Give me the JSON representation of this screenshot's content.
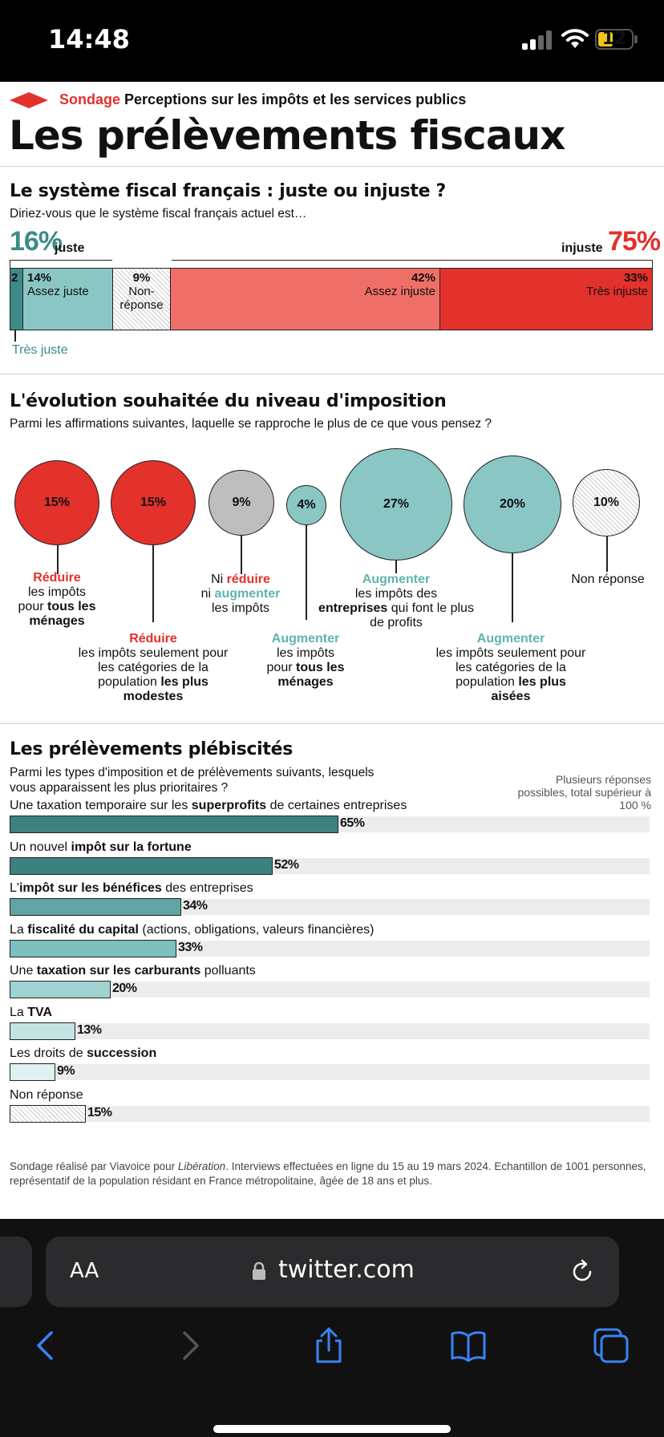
{
  "status_bar": {
    "time": "14:48",
    "battery": "12"
  },
  "article": {
    "kicker": {
      "tag": "Sondage",
      "text": "Perceptions sur les impôts et les services publics"
    },
    "title": "Les prélèvements fiscaux",
    "section1": {
      "title": "Le système fiscal français : juste ou injuste ?",
      "subtitle": "Diriez-vous que le système fiscal français actuel est…",
      "juste_pct": "16%",
      "juste_label": "juste",
      "injuste_pct": "75%",
      "injuste_label": "injuste",
      "tres_juste_label": "Très juste",
      "segments": [
        {
          "pct": "2",
          "label": "",
          "value": 2,
          "color": "#3d8a88"
        },
        {
          "pct": "14%",
          "label": "Assez juste",
          "value": 14,
          "color": "#89c6c4"
        },
        {
          "pct": "9%",
          "label": "Non-réponse",
          "value": 9,
          "color": "hatch"
        },
        {
          "pct": "42%",
          "label": "Assez injuste",
          "value": 42,
          "color": "#ef6f68"
        },
        {
          "pct": "33%",
          "label": "Très injuste",
          "value": 33,
          "color": "#e3312c"
        }
      ]
    },
    "section2": {
      "title": "L'évolution souhaitée du niveau d'imposition",
      "subtitle": "Parmi les affirmations suivantes, laquelle se rapproche le plus de ce que vous pensez ?",
      "bubbles": [
        {
          "pct": "15%",
          "value": 15,
          "color": "#e3312c",
          "l1": "Réduire",
          "l2": "les impôts",
          "l3": "pour",
          "l3b": "tous les ménages"
        },
        {
          "pct": "15%",
          "value": 15,
          "color": "#e3312c",
          "l1": "Réduire",
          "l2": "les impôts seulement pour les catégories de la population",
          "l3b": "les plus modestes"
        },
        {
          "pct": "9%",
          "value": 9,
          "color": "#bdbdbd",
          "a": "Ni",
          "b": "réduire",
          "c": "ni",
          "d": "augmenter",
          "e": "les impôts"
        },
        {
          "pct": "4%",
          "value": 4,
          "color": "#89c6c4",
          "l1": "Augmenter",
          "l2": "les impôts",
          "l3": "pour",
          "l3b": "tous les ménages"
        },
        {
          "pct": "27%",
          "value": 27,
          "color": "#89c6c4",
          "l1": "Augmenter",
          "l2": "les impôts des",
          "l3b": "entreprises",
          "l4": "qui font le plus de profits"
        },
        {
          "pct": "20%",
          "value": 20,
          "color": "#89c6c4",
          "l1": "Augmenter",
          "l2": "les impôts seulement pour les catégories de la population",
          "l3b": "les plus aisées"
        },
        {
          "pct": "10%",
          "value": 10,
          "color": "hatch",
          "l1": "Non réponse"
        }
      ]
    },
    "section3": {
      "title": "Les prélèvements plébiscités",
      "subtitle": "Parmi les types d'imposition et de prélèvements suivants, lesquels vous apparaissent les plus prioritaires ?",
      "note": "Plusieurs réponses possibles, total supérieur à 100 %",
      "rows": [
        {
          "pre": "Une taxation temporaire sur les ",
          "bold": "superprofits",
          "post": " de certaines entreprises",
          "pct": "65%",
          "value": 65,
          "color": "#3d8080"
        },
        {
          "pre": "Un nouvel ",
          "bold": "impôt sur la fortune",
          "post": "",
          "pct": "52%",
          "value": 52,
          "color": "#3d8080"
        },
        {
          "pre": "L'",
          "bold": "impôt sur les bénéfices",
          "post": " des entreprises",
          "pct": "34%",
          "value": 34,
          "color": "#5fa5a4"
        },
        {
          "pre": "La ",
          "bold": "fiscalité du capital",
          "post": " (actions, obligations, valeurs financières)",
          "pct": "33%",
          "value": 33,
          "color": "#7cc0bf"
        },
        {
          "pre": "Une ",
          "bold": "taxation sur les carburants",
          "post": " polluants",
          "pct": "20%",
          "value": 20,
          "color": "#9fd2d0"
        },
        {
          "pre": "La ",
          "bold": "TVA",
          "post": "",
          "pct": "13%",
          "value": 13,
          "color": "#c2e4e2"
        },
        {
          "pre": "Les droits de ",
          "bold": "succession",
          "post": "",
          "pct": "9%",
          "value": 9,
          "color": "#dff1f0"
        },
        {
          "pre": "Non réponse",
          "bold": "",
          "post": "",
          "pct": "15%",
          "value": 15,
          "color": "hatch"
        }
      ]
    },
    "source": {
      "pre": "Sondage réalisé par Viavoice pour ",
      "italic": "Libération",
      "post": ". Interviews effectuées en ligne du 15 au 19 mars 2024. Echantillon de 1001 personnes, représentatif de la population résidant en France métropolitaine, âgée de 18 ans et plus."
    }
  },
  "browser": {
    "text_size_label": "AA",
    "url": "twitter.com",
    "icons": [
      "lock-icon",
      "reload-icon",
      "back-icon",
      "forward-icon",
      "share-icon",
      "bookmarks-icon",
      "tabs-icon"
    ]
  },
  "chart_data": {
    "type": "bar",
    "categories": [
      "superprofits",
      "impôt sur la fortune",
      "impôt sur les bénéfices",
      "fiscalité du capital",
      "taxation sur les carburants",
      "TVA",
      "succession",
      "Non réponse"
    ],
    "values": [
      65,
      52,
      34,
      33,
      20,
      13,
      9,
      15
    ],
    "ylim": [
      0,
      100
    ]
  }
}
